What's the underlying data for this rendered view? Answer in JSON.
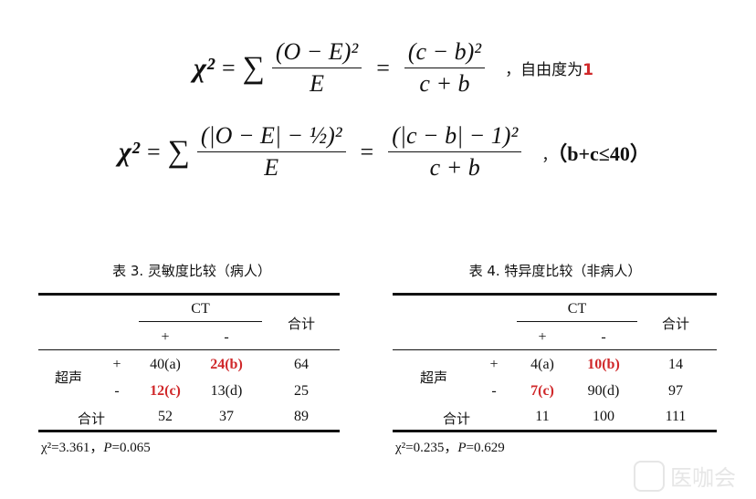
{
  "formula1": {
    "lhs": "χ²",
    "sum_num": "(O − E)²",
    "sum_den": "E",
    "rhs_num": "(c − b)²",
    "rhs_den": "c + b",
    "note": "，自由度为",
    "note_value": "1"
  },
  "formula2": {
    "lhs": "χ²",
    "sum_num": "(|O − E| − ½)²",
    "sum_den": "E",
    "rhs_num": "(|c − b| − 1)²",
    "rhs_den": "c + b",
    "note_sep": "，",
    "condition": "（b+c≤40）"
  },
  "tables": [
    {
      "caption": "表 3. 灵敏度比较（病人）",
      "ct": "CT",
      "total_header": "合计",
      "plus": "+",
      "minus": "-",
      "row_group": "超声",
      "rows": [
        {
          "sign": "+",
          "a": "40(a)",
          "b": "24(b)",
          "total": "64"
        },
        {
          "sign": "-",
          "a": "12(c)",
          "b": "13(d)",
          "total": "25"
        }
      ],
      "total_row": {
        "label": "合计",
        "c1": "52",
        "c2": "37",
        "total": "89"
      },
      "stat": {
        "chi": "χ²=3.361，",
        "p_label": "P",
        "p_value": "=0.065"
      }
    },
    {
      "caption": "表 4. 特异度比较（非病人）",
      "ct": "CT",
      "total_header": "合计",
      "plus": "+",
      "minus": "-",
      "row_group": "超声",
      "rows": [
        {
          "sign": "+",
          "a": "4(a)",
          "b": "10(b)",
          "total": "14"
        },
        {
          "sign": "-",
          "a": "7(c)",
          "b": "90(d)",
          "total": "97"
        }
      ],
      "total_row": {
        "label": "合计",
        "c1": "11",
        "c2": "100",
        "total": "111"
      },
      "stat": {
        "chi": "χ²=0.235，",
        "p_label": "P",
        "p_value": "=0.629"
      }
    }
  ],
  "watermark": "医咖会",
  "colors": {
    "highlight": "#d0282a"
  }
}
